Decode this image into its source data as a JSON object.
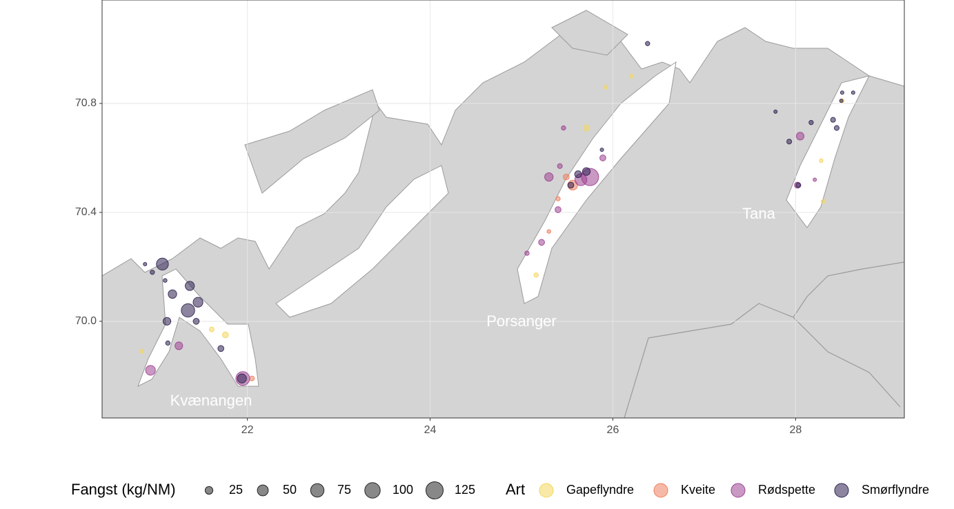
{
  "chart_data": {
    "type": "scatter",
    "xlim": [
      20.41,
      29.19
    ],
    "ylim": [
      69.645,
      71.18
    ],
    "xticks": [
      22,
      24,
      26,
      28
    ],
    "yticks": [
      {
        "value": 70.0,
        "label": "70.0"
      },
      {
        "value": 70.4,
        "label": "70.4"
      },
      {
        "value": 70.8,
        "label": "70.8"
      }
    ],
    "grid": true,
    "legend": "bottom",
    "annotations": [
      "Kvænangen",
      "Porsanger",
      "Tana"
    ],
    "size_legend": {
      "title": "Fangst (kg/NM)",
      "values": [
        25,
        50,
        75,
        100,
        125
      ]
    },
    "legend_title": "Art",
    "series": [
      {
        "name": "Gapeflyndre",
        "color": "#f3d75e",
        "x": [
          25.71,
          21.76,
          21.61,
          25.16,
          28.51,
          26.2,
          25.92,
          28.28,
          28.3,
          20.84
        ],
        "y": [
          70.71,
          69.95,
          69.97,
          70.17,
          70.81,
          70.9,
          70.86,
          70.59,
          70.44,
          69.89
        ],
        "sizes": [
          15,
          15,
          10,
          8,
          6,
          6,
          6,
          6,
          6,
          6
        ]
      },
      {
        "name": "Kveite",
        "color": "#ee7f5f",
        "x": [
          25.56,
          22.05,
          25.49,
          25.4,
          25.3
        ],
        "y": [
          70.5,
          69.79,
          70.53,
          70.45,
          70.33
        ],
        "sizes": [
          40,
          10,
          15,
          8,
          6
        ]
      },
      {
        "name": "Rødspette",
        "color": "#9c4392",
        "x": [
          20.94,
          21.25,
          21.95,
          25.75,
          25.65,
          25.3,
          25.4,
          25.22,
          25.06,
          28.05,
          28.02,
          25.89,
          25.42,
          28.21,
          25.46
        ],
        "y": [
          69.82,
          69.91,
          69.79,
          70.53,
          70.52,
          70.53,
          70.41,
          70.29,
          70.25,
          70.68,
          70.5,
          70.6,
          70.57,
          70.52,
          70.71
        ],
        "sizes": [
          40,
          25,
          80,
          125,
          60,
          30,
          15,
          15,
          8,
          25,
          15,
          15,
          10,
          5,
          8
        ]
      },
      {
        "name": "Smørflyndre",
        "color": "#2f2150",
        "x": [
          21.07,
          21.35,
          21.46,
          21.37,
          21.18,
          21.12,
          20.88,
          20.96,
          21.1,
          21.44,
          21.13,
          21.71,
          21.94,
          25.62,
          25.71,
          25.54,
          28.41,
          28.45,
          28.03,
          27.93,
          28.51,
          28.63,
          26.38,
          28.17,
          25.88,
          27.78,
          28.5
        ],
        "y": [
          70.21,
          70.04,
          70.07,
          70.13,
          70.1,
          70.0,
          70.21,
          70.18,
          70.15,
          70.0,
          69.92,
          69.9,
          69.79,
          70.54,
          70.55,
          70.5,
          70.74,
          70.71,
          70.5,
          70.66,
          70.84,
          70.84,
          71.02,
          70.73,
          70.63,
          70.77,
          70.81
        ],
        "sizes": [
          60,
          75,
          40,
          35,
          30,
          25,
          5,
          8,
          6,
          15,
          8,
          15,
          35,
          20,
          25,
          15,
          10,
          10,
          10,
          10,
          5,
          5,
          8,
          8,
          5,
          5,
          5
        ]
      }
    ]
  }
}
